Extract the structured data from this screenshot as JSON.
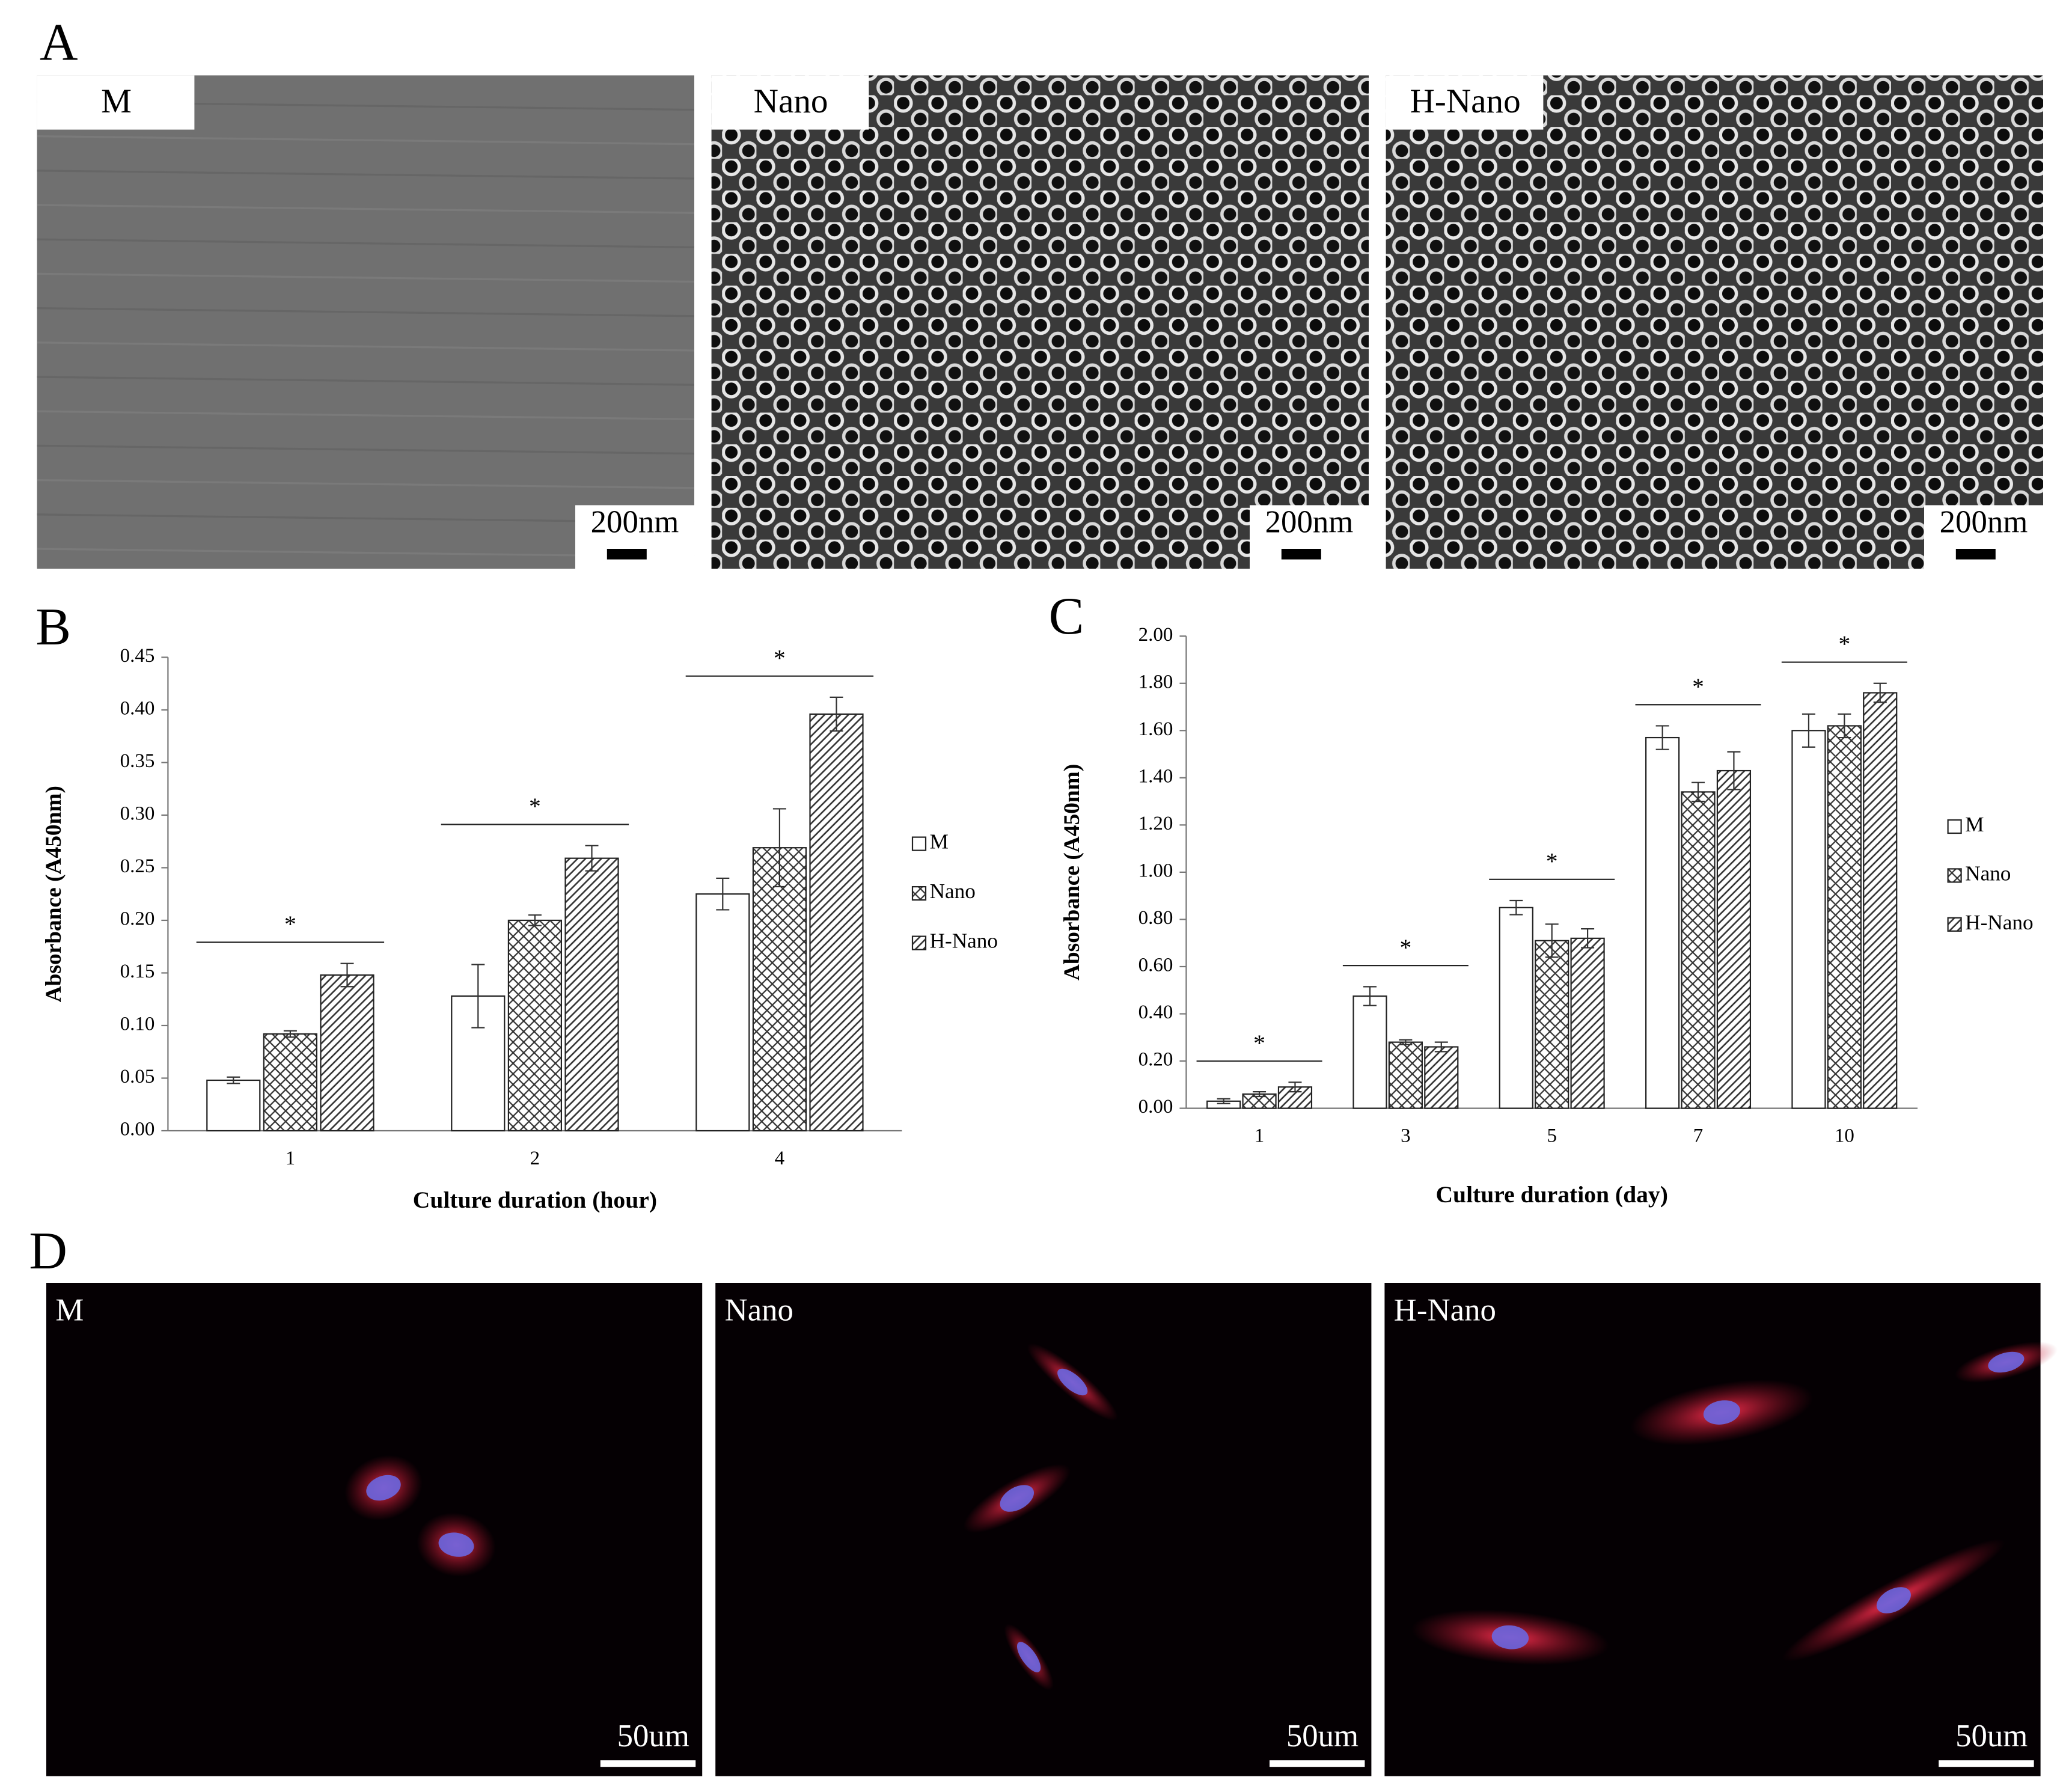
{
  "panel_labels": [
    "A",
    "B",
    "C",
    "D"
  ],
  "sem_images": [
    {
      "label": "M",
      "scale_bar": "200nm"
    },
    {
      "label": "Nano",
      "scale_bar": "200nm"
    },
    {
      "label": "H-Nano",
      "scale_bar": "200nm"
    }
  ],
  "fluorescence_images": [
    {
      "label": "M",
      "scale_bar": "50um"
    },
    {
      "label": "Nano",
      "scale_bar": "50um"
    },
    {
      "label": "H-Nano",
      "scale_bar": "50um"
    }
  ],
  "chart_data": [
    {
      "type": "bar",
      "x_label": "Culture duration (hour)",
      "y_label": "Absorbance (A450nm)",
      "categories": [
        "1",
        "2",
        "4"
      ],
      "series": [
        {
          "name": "M",
          "color": "#ffffff",
          "pattern": "none",
          "values": [
            0.048,
            0.128,
            0.225
          ],
          "errors": [
            0.003,
            0.03,
            0.015
          ]
        },
        {
          "name": "Nano",
          "color": "#ffffff",
          "pattern": "crosshatch",
          "values": [
            0.092,
            0.2,
            0.269
          ],
          "errors": [
            0.003,
            0.005,
            0.037
          ]
        },
        {
          "name": "H-Nano",
          "color": "#ffffff",
          "pattern": "diagonal",
          "values": [
            0.148,
            0.259,
            0.396
          ],
          "errors": [
            0.011,
            0.012,
            0.016
          ]
        }
      ],
      "significance": [
        "*",
        "*",
        "*"
      ],
      "ylim": [
        0,
        0.45
      ],
      "yticks": [
        {
          "value": 0,
          "label": "0.00"
        },
        {
          "value": 0.05,
          "label": "0.05"
        },
        {
          "value": 0.1,
          "label": "0.10"
        },
        {
          "value": 0.15,
          "label": "0.15"
        },
        {
          "value": 0.2,
          "label": "0.20"
        },
        {
          "value": 0.25,
          "label": "0.25"
        },
        {
          "value": 0.3,
          "label": "0.30"
        },
        {
          "value": 0.35,
          "label": "0.35"
        },
        {
          "value": 0.4,
          "label": "0.40"
        },
        {
          "value": 0.45,
          "label": "0.45"
        }
      ],
      "legend": "right",
      "grid": false
    },
    {
      "type": "bar",
      "x_label": "Culture duration (day)",
      "y_label": "Absorbance (A450nm)",
      "categories": [
        "1",
        "3",
        "5",
        "7",
        "10"
      ],
      "series": [
        {
          "name": "M",
          "color": "#ffffff",
          "pattern": "none",
          "values": [
            0.03,
            0.475,
            0.85,
            1.57,
            1.6
          ],
          "errors": [
            0.01,
            0.04,
            0.03,
            0.05,
            0.07
          ]
        },
        {
          "name": "Nano",
          "color": "#ffffff",
          "pattern": "crosshatch",
          "values": [
            0.06,
            0.28,
            0.71,
            1.34,
            1.62
          ],
          "errors": [
            0.01,
            0.01,
            0.07,
            0.04,
            0.05
          ]
        },
        {
          "name": "H-Nano",
          "color": "#ffffff",
          "pattern": "diagonal",
          "values": [
            0.09,
            0.26,
            0.72,
            1.43,
            1.76
          ],
          "errors": [
            0.02,
            0.02,
            0.04,
            0.08,
            0.04
          ]
        }
      ],
      "significance": [
        "*",
        "*",
        "*",
        "*",
        "*"
      ],
      "ylim": [
        0,
        2
      ],
      "yticks": [
        {
          "value": 0,
          "label": "0.00"
        },
        {
          "value": 0.2,
          "label": "0.20"
        },
        {
          "value": 0.4,
          "label": "0.40"
        },
        {
          "value": 0.6,
          "label": "0.60"
        },
        {
          "value": 0.8,
          "label": "0.80"
        },
        {
          "value": 1,
          "label": "1.00"
        },
        {
          "value": 1.2,
          "label": "1.20"
        },
        {
          "value": 1.4,
          "label": "1.40"
        },
        {
          "value": 1.6,
          "label": "1.60"
        },
        {
          "value": 1.8,
          "label": "1.80"
        },
        {
          "value": 2,
          "label": "2.00"
        }
      ],
      "legend": "right",
      "grid": false
    }
  ]
}
